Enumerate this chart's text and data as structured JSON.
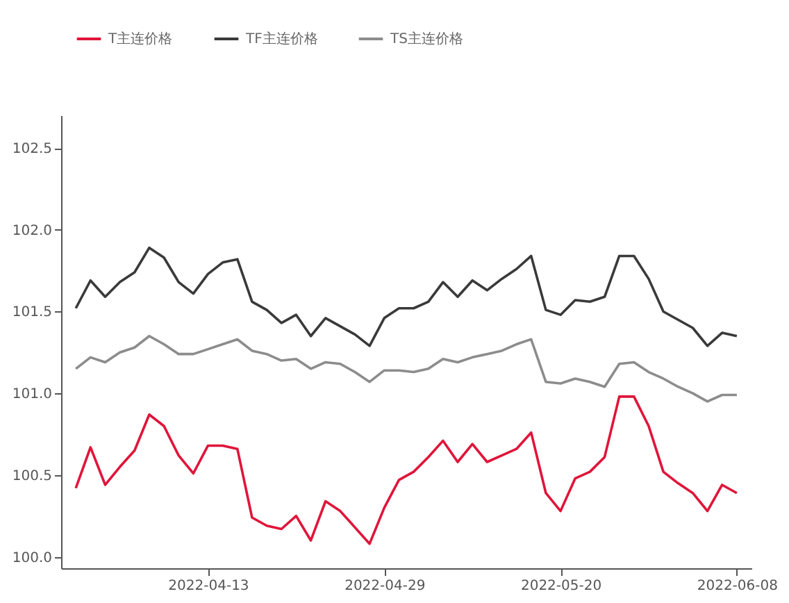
{
  "chart_data": {
    "type": "line",
    "categories": [
      null,
      null,
      null,
      null,
      null,
      null,
      null,
      null,
      null,
      "2022-04-13",
      null,
      null,
      null,
      null,
      null,
      null,
      null,
      null,
      null,
      null,
      null,
      "2022-04-29",
      null,
      null,
      null,
      null,
      null,
      null,
      null,
      null,
      null,
      null,
      null,
      "2022-05-20",
      null,
      null,
      null,
      null,
      null,
      null,
      null,
      null,
      null,
      null,
      null,
      "2022-06-08"
    ],
    "series": [
      {
        "name": "T主连价格",
        "color": "#e0153a",
        "values": [
          100.42,
          100.67,
          100.44,
          100.55,
          100.65,
          100.87,
          100.8,
          100.62,
          100.51,
          100.68,
          100.68,
          100.66,
          100.24,
          100.19,
          100.17,
          100.25,
          100.1,
          100.34,
          100.28,
          100.18,
          100.08,
          100.3,
          100.47,
          100.52,
          100.61,
          100.71,
          100.58,
          100.69,
          100.58,
          100.62,
          100.66,
          100.76,
          100.39,
          100.28,
          100.48,
          100.52,
          100.61,
          100.98,
          100.98,
          100.8,
          100.52,
          100.45,
          100.39,
          100.28,
          100.44,
          100.39
        ]
      },
      {
        "name": "TF主连价格",
        "color": "#3a3a3a",
        "values": [
          101.52,
          101.69,
          101.59,
          101.68,
          101.74,
          101.89,
          101.83,
          101.68,
          101.61,
          101.73,
          101.8,
          101.82,
          101.56,
          101.51,
          101.43,
          101.48,
          101.35,
          101.46,
          101.41,
          101.36,
          101.29,
          101.46,
          101.52,
          101.52,
          101.56,
          101.68,
          101.59,
          101.69,
          101.63,
          101.7,
          101.76,
          101.84,
          101.51,
          101.48,
          101.57,
          101.56,
          101.59,
          101.84,
          101.84,
          101.7,
          101.5,
          101.45,
          101.4,
          101.29,
          101.37,
          101.35
        ]
      },
      {
        "name": "TS主连价格",
        "color": "#8c8c8c",
        "values": [
          101.15,
          101.22,
          101.19,
          101.25,
          101.28,
          101.35,
          101.3,
          101.24,
          101.24,
          101.27,
          101.3,
          101.33,
          101.26,
          101.24,
          101.2,
          101.21,
          101.15,
          101.19,
          101.18,
          101.13,
          101.07,
          101.14,
          101.14,
          101.13,
          101.15,
          101.21,
          101.19,
          101.22,
          101.24,
          101.26,
          101.3,
          101.33,
          101.07,
          101.06,
          101.09,
          101.07,
          101.04,
          101.18,
          101.19,
          101.13,
          101.09,
          101.04,
          101.0,
          100.95,
          100.99,
          100.99
        ]
      }
    ],
    "ylim": [
      99.93,
      102.7
    ],
    "yticks": [
      {
        "value": 100,
        "label": "100.0"
      },
      100.5,
      {
        "value": 101,
        "label": "101.0"
      },
      101.5,
      {
        "value": 102,
        "label": "102.0"
      },
      102.5
    ],
    "grid": false,
    "legend": "top",
    "marker": "none",
    "line_style": "solid"
  }
}
